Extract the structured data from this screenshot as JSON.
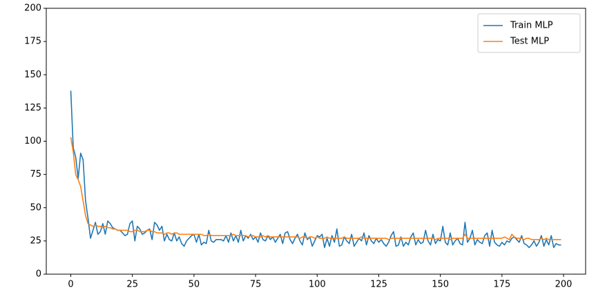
{
  "chart_data": {
    "type": "line",
    "x": [
      0,
      1,
      2,
      3,
      4,
      5,
      6,
      7,
      8,
      9,
      10,
      11,
      12,
      13,
      14,
      15,
      16,
      17,
      18,
      19,
      20,
      21,
      22,
      23,
      24,
      25,
      26,
      27,
      28,
      29,
      30,
      31,
      32,
      33,
      34,
      35,
      36,
      37,
      38,
      39,
      40,
      41,
      42,
      43,
      44,
      45,
      46,
      47,
      48,
      49,
      50,
      51,
      52,
      53,
      54,
      55,
      56,
      57,
      58,
      59,
      60,
      61,
      62,
      63,
      64,
      65,
      66,
      67,
      68,
      69,
      70,
      71,
      72,
      73,
      74,
      75,
      76,
      77,
      78,
      79,
      80,
      81,
      82,
      83,
      84,
      85,
      86,
      87,
      88,
      89,
      90,
      91,
      92,
      93,
      94,
      95,
      96,
      97,
      98,
      99,
      100,
      101,
      102,
      103,
      104,
      105,
      106,
      107,
      108,
      109,
      110,
      111,
      112,
      113,
      114,
      115,
      116,
      117,
      118,
      119,
      120,
      121,
      122,
      123,
      124,
      125,
      126,
      127,
      128,
      129,
      130,
      131,
      132,
      133,
      134,
      135,
      136,
      137,
      138,
      139,
      140,
      141,
      142,
      143,
      144,
      145,
      146,
      147,
      148,
      149,
      150,
      151,
      152,
      153,
      154,
      155,
      156,
      157,
      158,
      159,
      160,
      161,
      162,
      163,
      164,
      165,
      166,
      167,
      168,
      169,
      170,
      171,
      172,
      173,
      174,
      175,
      176,
      177,
      178,
      179,
      180,
      181,
      182,
      183,
      184,
      185,
      186,
      187,
      188,
      189,
      190,
      191,
      192,
      193,
      194,
      195,
      196,
      197,
      198,
      199
    ],
    "series": [
      {
        "name": "Train MLP",
        "color": "#1f77b4",
        "values": [
          138,
          95,
          88,
          72,
          91,
          86,
          55,
          42,
          27,
          33,
          39,
          30,
          32,
          38,
          30,
          40,
          38,
          35,
          34,
          33,
          33,
          31,
          29,
          30,
          38,
          40,
          25,
          36,
          34,
          30,
          31,
          33,
          34,
          26,
          39,
          37,
          33,
          36,
          25,
          30,
          26,
          25,
          31,
          25,
          28,
          23,
          21,
          25,
          27,
          29,
          30,
          24,
          30,
          22,
          24,
          23,
          33,
          25,
          24,
          26,
          26,
          26,
          25,
          29,
          24,
          31,
          25,
          29,
          24,
          33,
          25,
          29,
          27,
          30,
          26,
          28,
          24,
          31,
          26,
          25,
          29,
          26,
          28,
          24,
          27,
          30,
          23,
          31,
          32,
          26,
          23,
          27,
          30,
          25,
          22,
          31,
          26,
          28,
          21,
          25,
          29,
          28,
          30,
          20,
          27,
          21,
          29,
          24,
          34,
          21,
          22,
          28,
          25,
          23,
          30,
          21,
          24,
          27,
          25,
          31,
          22,
          29,
          25,
          23,
          27,
          24,
          26,
          23,
          21,
          24,
          29,
          32,
          21,
          22,
          28,
          21,
          24,
          22,
          28,
          31,
          22,
          26,
          23,
          24,
          33,
          25,
          22,
          30,
          23,
          26,
          25,
          36,
          24,
          22,
          31,
          22,
          25,
          27,
          23,
          22,
          39,
          24,
          27,
          33,
          22,
          26,
          24,
          23,
          29,
          31,
          21,
          33,
          24,
          22,
          21,
          24,
          22,
          25,
          24,
          27,
          28,
          26,
          24,
          29,
          23,
          22,
          20,
          22,
          25,
          21,
          24,
          29,
          21,
          26,
          22,
          29,
          20,
          23,
          22,
          22
        ]
      },
      {
        "name": "Test MLP",
        "color": "#ff7f0e",
        "values": [
          103,
          92,
          75,
          71,
          66,
          55,
          44,
          38,
          37,
          36,
          37,
          36,
          36,
          35,
          36,
          35,
          35,
          34,
          34,
          33,
          33,
          33,
          33,
          33,
          32,
          32,
          33,
          33,
          32,
          32,
          32,
          33,
          33,
          32,
          32,
          31,
          31,
          31,
          30,
          31,
          31,
          30,
          31,
          31,
          30,
          30,
          30,
          30,
          30,
          30,
          30,
          30,
          30,
          30,
          29,
          29,
          30,
          29,
          29,
          29,
          29,
          29,
          29,
          29,
          29,
          29,
          30,
          29,
          29,
          29,
          29,
          29,
          28,
          29,
          29,
          28,
          28,
          28,
          29,
          28,
          29,
          28,
          28,
          28,
          28,
          28,
          28,
          28,
          28,
          28,
          28,
          28,
          28,
          27,
          28,
          28,
          27,
          28,
          28,
          27,
          28,
          27,
          27,
          27,
          28,
          27,
          27,
          27,
          27,
          27,
          27,
          28,
          27,
          27,
          27,
          27,
          27,
          27,
          28,
          27,
          27,
          27,
          27,
          27,
          27,
          27,
          27,
          27,
          27,
          26,
          27,
          27,
          27,
          27,
          27,
          27,
          27,
          27,
          27,
          27,
          27,
          27,
          27,
          27,
          27,
          27,
          27,
          27,
          26,
          27,
          27,
          27,
          27,
          27,
          26,
          27,
          27,
          27,
          27,
          27,
          30,
          27,
          27,
          27,
          27,
          27,
          27,
          27,
          27,
          27,
          27,
          27,
          27,
          27,
          27,
          27,
          28,
          27,
          26,
          30,
          28,
          27,
          27,
          27,
          26,
          27,
          27,
          26,
          26,
          26,
          26,
          27,
          26,
          27,
          26,
          26,
          26,
          26,
          26,
          26
        ]
      }
    ],
    "xlim": [
      -9.95,
      208.95
    ],
    "xticks": [
      0,
      25,
      50,
      75,
      100,
      125,
      150,
      175,
      200
    ],
    "ylim": [
      0,
      200
    ],
    "yticks": [
      0,
      25,
      50,
      75,
      100,
      125,
      150,
      175,
      200
    ],
    "grid": false,
    "legend": "upper right"
  }
}
